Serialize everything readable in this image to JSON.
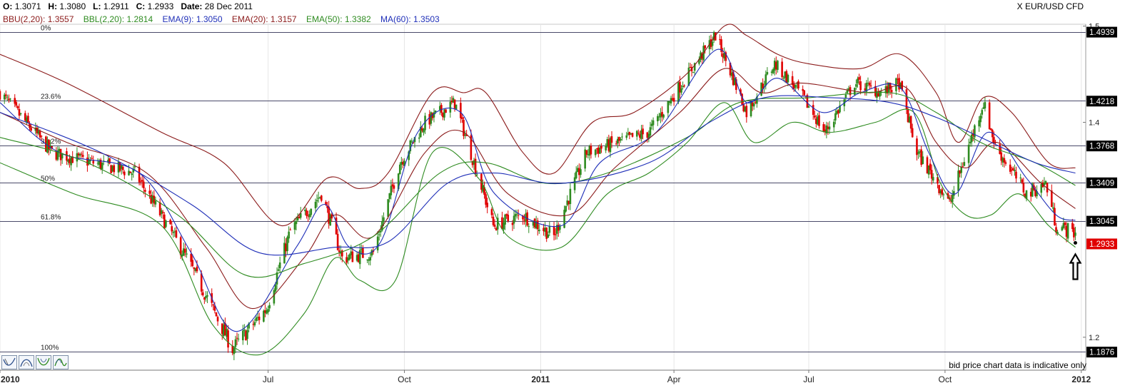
{
  "header": {
    "ohlc": [
      {
        "label": "O:",
        "value": "1.3071"
      },
      {
        "label": "H:",
        "value": "1.3080"
      },
      {
        "label": "L:",
        "value": "1.2911"
      },
      {
        "label": "C:",
        "value": "1.2933"
      },
      {
        "label": "Date:",
        "value": "28 Dec 2011"
      }
    ],
    "indicators": [
      {
        "text": "BBU(2,20): 1.3557",
        "color": "#8b1a1a"
      },
      {
        "text": "BBL(2,20): 1.2814",
        "color": "#2e8b20"
      },
      {
        "text": "EMA(9): 1.3050",
        "color": "#1f2fb8"
      },
      {
        "text": "EMA(20): 1.3157",
        "color": "#8b1a1a"
      },
      {
        "text": "EMA(50): 1.3382",
        "color": "#2e8b20"
      },
      {
        "text": "MA(60): 1.3503",
        "color": "#1f2fb8"
      }
    ],
    "instrument": "X EUR/USD CFD"
  },
  "footer": {
    "disclaimer": "bid price chart data is indicative only"
  },
  "toolbar": {
    "buttons": [
      "normal-curve-icon",
      "bell-curve-icon",
      "valley-curve-icon",
      "wave-curve-icon"
    ]
  },
  "colors": {
    "up_candle": "#2e8b20",
    "down_candle": "#e00000",
    "bb_upper": "#8b1a1a",
    "bb_lower": "#2e8b20",
    "ema9": "#1f2fb8",
    "ema20": "#8b1a1a",
    "ema50": "#2e8b20",
    "ma60": "#1f2fb8",
    "last_price_bg": "#e00000",
    "level_bg": "#000000",
    "arrow": "#000000"
  },
  "chart_data": {
    "type": "candlestick",
    "instrument": "X EUR/USD CFD",
    "x_range": [
      "2010-01-01",
      "2012-01-04"
    ],
    "x_tick_labels": [
      {
        "label": "2010",
        "date": "2010-01-01",
        "bold": true
      },
      {
        "label": "Jul",
        "date": "2010-07-01",
        "bold": false
      },
      {
        "label": "Oct",
        "date": "2010-10-01",
        "bold": false
      },
      {
        "label": "2011",
        "date": "2011-01-01",
        "bold": true
      },
      {
        "label": "Apr",
        "date": "2011-04-01",
        "bold": false
      },
      {
        "label": "Jul",
        "date": "2011-07-01",
        "bold": false
      },
      {
        "label": "Oct",
        "date": "2011-10-01",
        "bold": false
      },
      {
        "label": "2012",
        "date": "2012-01-01",
        "bold": true
      }
    ],
    "y_scale": "log",
    "y_range": [
      1.172,
      1.502
    ],
    "y_tick_labels": [
      "1.2",
      "1.4",
      "1.5"
    ],
    "fibonacci_levels": [
      {
        "label": "0%",
        "price": 1.4939
      },
      {
        "label": "23.6%",
        "price": 1.4218
      },
      {
        "label": "38.2%",
        "price": 1.3768
      },
      {
        "label": "50%",
        "price": 1.3409
      },
      {
        "label": "61.8%",
        "price": 1.3045
      },
      {
        "label": "100%",
        "price": 1.1876
      }
    ],
    "price_tags": [
      {
        "value": "1.4939",
        "price": 1.4939
      },
      {
        "value": "1.4218",
        "price": 1.4218
      },
      {
        "value": "1.3768",
        "price": 1.3768
      },
      {
        "value": "1.3409",
        "price": 1.3409
      },
      {
        "value": "1.3045",
        "price": 1.3045
      },
      {
        "value": "1.2933",
        "price": 1.2933,
        "last": true
      },
      {
        "value": "1.1876",
        "price": 1.1876
      }
    ],
    "close_path": [
      [
        "2010-01-01",
        1.43
      ],
      [
        "2010-02-05",
        1.37
      ],
      [
        "2010-03-05",
        1.36
      ],
      [
        "2010-04-02",
        1.35
      ],
      [
        "2010-05-07",
        1.27
      ],
      [
        "2010-06-07",
        1.19
      ],
      [
        "2010-06-30",
        1.225
      ],
      [
        "2010-07-16",
        1.295
      ],
      [
        "2010-08-06",
        1.33
      ],
      [
        "2010-08-20",
        1.27
      ],
      [
        "2010-09-10",
        1.275
      ],
      [
        "2010-09-28",
        1.36
      ],
      [
        "2010-10-15",
        1.4
      ],
      [
        "2010-11-04",
        1.42
      ],
      [
        "2010-11-30",
        1.3
      ],
      [
        "2010-12-20",
        1.31
      ],
      [
        "2011-01-10",
        1.29
      ],
      [
        "2011-02-01",
        1.37
      ],
      [
        "2011-03-15",
        1.39
      ],
      [
        "2011-04-29",
        1.49
      ],
      [
        "2011-05-20",
        1.41
      ],
      [
        "2011-06-08",
        1.46
      ],
      [
        "2011-06-25",
        1.43
      ],
      [
        "2011-07-12",
        1.39
      ],
      [
        "2011-08-01",
        1.44
      ],
      [
        "2011-08-20",
        1.43
      ],
      [
        "2011-08-31",
        1.44
      ],
      [
        "2011-09-12",
        1.37
      ],
      [
        "2011-09-26",
        1.34
      ],
      [
        "2011-10-04",
        1.32
      ],
      [
        "2011-10-27",
        1.42
      ],
      [
        "2011-11-04",
        1.376
      ],
      [
        "2011-11-25",
        1.33
      ],
      [
        "2011-12-08",
        1.34
      ],
      [
        "2011-12-15",
        1.3
      ],
      [
        "2011-12-28",
        1.2933
      ]
    ],
    "indicator_lines": [
      {
        "name": "BBU(2,20)",
        "color": "#8b1a1a",
        "points": [
          [
            "2010-01-01",
            1.47
          ],
          [
            "2010-02-15",
            1.44
          ],
          [
            "2010-04-20",
            1.39
          ],
          [
            "2010-06-01",
            1.36
          ],
          [
            "2010-07-10",
            1.3
          ],
          [
            "2010-08-10",
            1.345
          ],
          [
            "2010-09-01",
            1.335
          ],
          [
            "2010-09-20",
            1.35
          ],
          [
            "2010-10-20",
            1.43
          ],
          [
            "2010-11-10",
            1.43
          ],
          [
            "2010-11-25",
            1.43
          ],
          [
            "2010-12-20",
            1.37
          ],
          [
            "2011-01-10",
            1.35
          ],
          [
            "2011-02-05",
            1.4
          ],
          [
            "2011-03-05",
            1.41
          ],
          [
            "2011-04-10",
            1.45
          ],
          [
            "2011-05-05",
            1.5
          ],
          [
            "2011-05-20",
            1.49
          ],
          [
            "2011-06-10",
            1.47
          ],
          [
            "2011-07-01",
            1.46
          ],
          [
            "2011-08-05",
            1.455
          ],
          [
            "2011-09-01",
            1.47
          ],
          [
            "2011-09-25",
            1.43
          ],
          [
            "2011-10-10",
            1.38
          ],
          [
            "2011-10-27",
            1.425
          ],
          [
            "2011-11-15",
            1.41
          ],
          [
            "2011-12-10",
            1.36
          ],
          [
            "2011-12-28",
            1.355
          ]
        ]
      },
      {
        "name": "BBL(2,20)",
        "color": "#2e8b20",
        "points": [
          [
            "2010-01-01",
            1.36
          ],
          [
            "2010-02-20",
            1.33
          ],
          [
            "2010-04-20",
            1.3
          ],
          [
            "2010-05-25",
            1.21
          ],
          [
            "2010-06-25",
            1.185
          ],
          [
            "2010-07-25",
            1.22
          ],
          [
            "2010-08-15",
            1.27
          ],
          [
            "2010-09-01",
            1.25
          ],
          [
            "2010-09-25",
            1.25
          ],
          [
            "2010-10-20",
            1.37
          ],
          [
            "2010-11-20",
            1.345
          ],
          [
            "2010-12-10",
            1.29
          ],
          [
            "2011-01-15",
            1.28
          ],
          [
            "2011-02-15",
            1.33
          ],
          [
            "2011-03-15",
            1.35
          ],
          [
            "2011-04-10",
            1.38
          ],
          [
            "2011-05-05",
            1.42
          ],
          [
            "2011-05-25",
            1.38
          ],
          [
            "2011-06-20",
            1.4
          ],
          [
            "2011-07-15",
            1.39
          ],
          [
            "2011-08-15",
            1.4
          ],
          [
            "2011-09-10",
            1.41
          ],
          [
            "2011-09-28",
            1.34
          ],
          [
            "2011-10-15",
            1.31
          ],
          [
            "2011-11-01",
            1.31
          ],
          [
            "2011-11-20",
            1.33
          ],
          [
            "2011-12-10",
            1.3
          ],
          [
            "2011-12-28",
            1.28
          ]
        ]
      },
      {
        "name": "EMA(9)",
        "color": "#1f2fb8",
        "points": [
          [
            "2010-01-01",
            1.42
          ],
          [
            "2010-02-10",
            1.37
          ],
          [
            "2010-04-05",
            1.35
          ],
          [
            "2010-05-10",
            1.275
          ],
          [
            "2010-06-10",
            1.205
          ],
          [
            "2010-07-20",
            1.28
          ],
          [
            "2010-08-08",
            1.32
          ],
          [
            "2010-08-25",
            1.28
          ],
          [
            "2010-09-15",
            1.285
          ],
          [
            "2010-10-10",
            1.39
          ],
          [
            "2010-11-08",
            1.41
          ],
          [
            "2010-12-01",
            1.33
          ],
          [
            "2011-01-15",
            1.3
          ],
          [
            "2011-02-10",
            1.36
          ],
          [
            "2011-03-20",
            1.39
          ],
          [
            "2011-04-30",
            1.475
          ],
          [
            "2011-05-20",
            1.42
          ],
          [
            "2011-06-10",
            1.445
          ],
          [
            "2011-07-10",
            1.41
          ],
          [
            "2011-08-05",
            1.43
          ],
          [
            "2011-09-01",
            1.435
          ],
          [
            "2011-09-20",
            1.37
          ],
          [
            "2011-10-08",
            1.33
          ],
          [
            "2011-10-30",
            1.39
          ],
          [
            "2011-11-25",
            1.345
          ],
          [
            "2011-12-15",
            1.31
          ],
          [
            "2011-12-28",
            1.305
          ]
        ]
      },
      {
        "name": "EMA(20)",
        "color": "#8b1a1a",
        "points": [
          [
            "2010-01-01",
            1.41
          ],
          [
            "2010-02-15",
            1.38
          ],
          [
            "2010-04-10",
            1.35
          ],
          [
            "2010-05-20",
            1.28
          ],
          [
            "2010-06-20",
            1.225
          ],
          [
            "2010-07-25",
            1.27
          ],
          [
            "2010-08-15",
            1.31
          ],
          [
            "2010-09-10",
            1.29
          ],
          [
            "2010-10-15",
            1.37
          ],
          [
            "2010-11-10",
            1.39
          ],
          [
            "2010-12-10",
            1.33
          ],
          [
            "2011-01-20",
            1.31
          ],
          [
            "2011-02-20",
            1.355
          ],
          [
            "2011-04-05",
            1.41
          ],
          [
            "2011-05-05",
            1.455
          ],
          [
            "2011-05-30",
            1.43
          ],
          [
            "2011-06-25",
            1.44
          ],
          [
            "2011-08-10",
            1.43
          ],
          [
            "2011-09-05",
            1.435
          ],
          [
            "2011-09-25",
            1.38
          ],
          [
            "2011-10-15",
            1.355
          ],
          [
            "2011-11-05",
            1.38
          ],
          [
            "2011-12-05",
            1.34
          ],
          [
            "2011-12-28",
            1.316
          ]
        ]
      },
      {
        "name": "EMA(50)",
        "color": "#2e8b20",
        "points": [
          [
            "2010-01-01",
            1.385
          ],
          [
            "2010-03-01",
            1.36
          ],
          [
            "2010-05-01",
            1.31
          ],
          [
            "2010-06-15",
            1.255
          ],
          [
            "2010-07-25",
            1.265
          ],
          [
            "2010-09-10",
            1.29
          ],
          [
            "2010-10-25",
            1.35
          ],
          [
            "2010-11-25",
            1.36
          ],
          [
            "2011-01-05",
            1.34
          ],
          [
            "2011-02-15",
            1.35
          ],
          [
            "2011-04-10",
            1.385
          ],
          [
            "2011-05-15",
            1.42
          ],
          [
            "2011-07-01",
            1.425
          ],
          [
            "2011-08-25",
            1.43
          ],
          [
            "2011-09-25",
            1.41
          ],
          [
            "2011-10-25",
            1.38
          ],
          [
            "2011-12-01",
            1.36
          ],
          [
            "2011-12-28",
            1.338
          ]
        ]
      },
      {
        "name": "MA(60)",
        "color": "#1f2fb8",
        "points": [
          [
            "2010-01-01",
            1.41
          ],
          [
            "2010-03-10",
            1.37
          ],
          [
            "2010-05-10",
            1.32
          ],
          [
            "2010-06-25",
            1.275
          ],
          [
            "2010-08-15",
            1.28
          ],
          [
            "2010-09-20",
            1.285
          ],
          [
            "2010-10-30",
            1.34
          ],
          [
            "2010-12-01",
            1.35
          ],
          [
            "2011-01-15",
            1.34
          ],
          [
            "2011-03-15",
            1.36
          ],
          [
            "2011-04-25",
            1.4
          ],
          [
            "2011-06-01",
            1.425
          ],
          [
            "2011-07-15",
            1.425
          ],
          [
            "2011-08-25",
            1.42
          ],
          [
            "2011-09-25",
            1.405
          ],
          [
            "2011-10-25",
            1.385
          ],
          [
            "2011-12-01",
            1.36
          ],
          [
            "2011-12-28",
            1.35
          ]
        ]
      }
    ],
    "annotation": {
      "type": "up-arrow",
      "date": "2011-12-28",
      "price": 1.2933
    }
  }
}
